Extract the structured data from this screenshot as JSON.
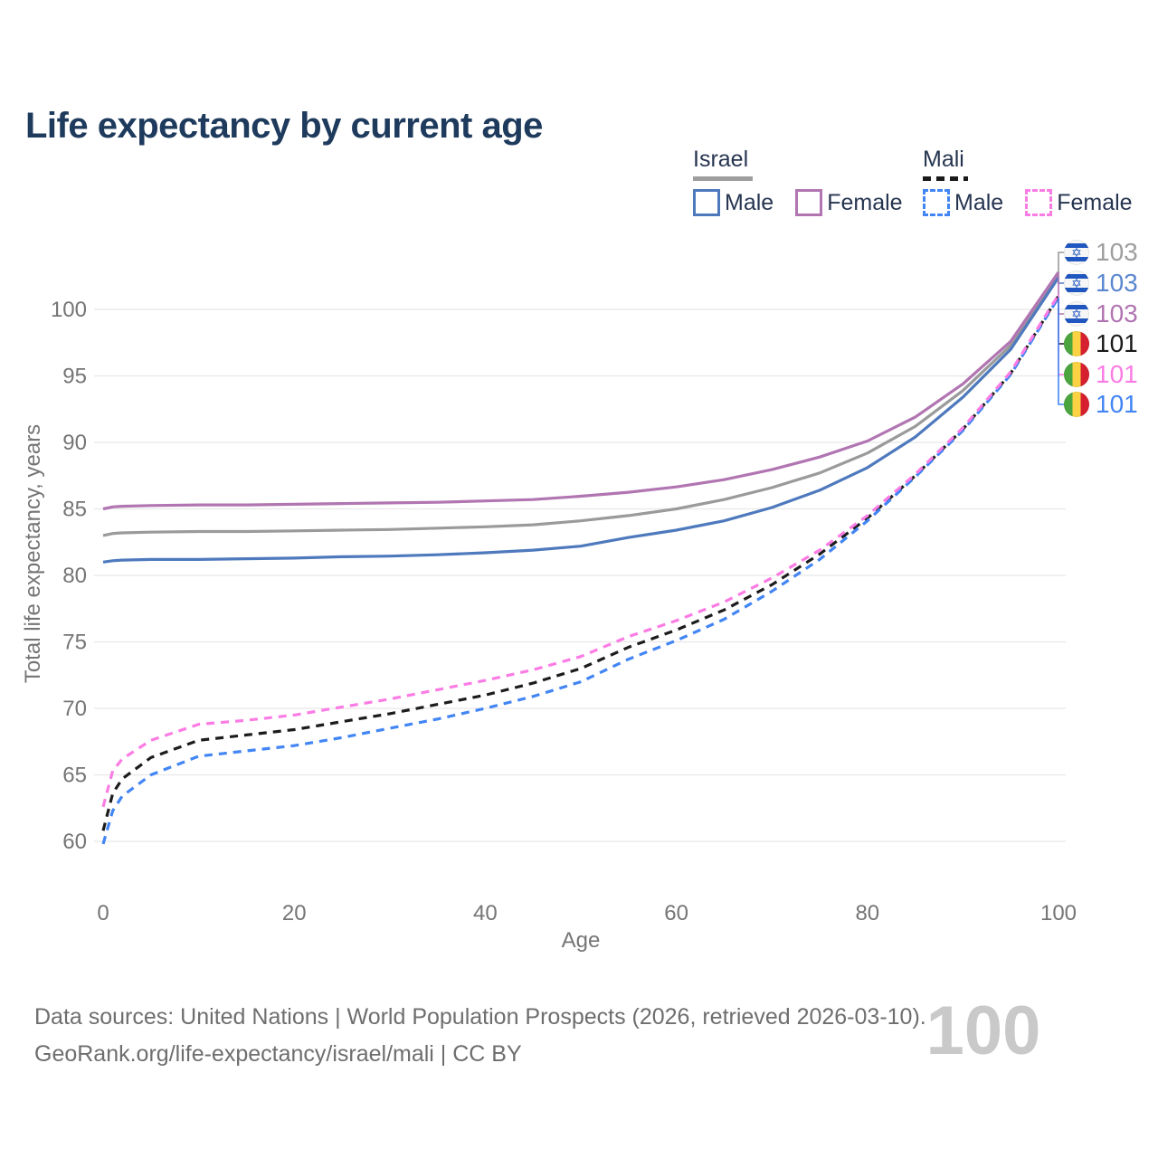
{
  "title": "Life expectancy by current age",
  "legend": {
    "groups": [
      {
        "name": "Israel",
        "line_style": "solid",
        "line_color": "#9e9e9e",
        "items": [
          {
            "label": "Male",
            "color": "#4e79bd",
            "dashed": false
          },
          {
            "label": "Female",
            "color": "#b175b1",
            "dashed": false
          }
        ]
      },
      {
        "name": "Mali",
        "line_style": "dashed",
        "line_color": "#1a1a1a",
        "items": [
          {
            "label": "Male",
            "color": "#4285f4",
            "dashed": true
          },
          {
            "label": "Female",
            "color": "#fb7ce4",
            "dashed": true
          }
        ]
      }
    ]
  },
  "axes": {
    "y_title": "Total life expectancy, years",
    "x_title": "Age",
    "y_ticks": [
      60,
      65,
      70,
      75,
      80,
      85,
      90,
      95,
      100
    ],
    "x_ticks": [
      0,
      20,
      40,
      60,
      80,
      100
    ]
  },
  "watermark": "100",
  "end_labels": [
    {
      "flag": "israel",
      "value": "103",
      "color": "#9e9e9e"
    },
    {
      "flag": "israel",
      "value": "103",
      "color": "#5b87cf"
    },
    {
      "flag": "israel",
      "value": "103",
      "color": "#b175b1"
    },
    {
      "flag": "mali",
      "value": "101",
      "color": "#1a1a1a"
    },
    {
      "flag": "mali",
      "value": "101",
      "color": "#fb7ce4"
    },
    {
      "flag": "mali",
      "value": "101",
      "color": "#4285f4"
    }
  ],
  "footer": {
    "line1": "Data sources: United Nations | World Population Prospects (2026, retrieved 2026-03-10).",
    "line2": "GeoRank.org/life-expectancy/israel/mali | CC BY"
  },
  "chart_data": {
    "type": "line",
    "title": "Life expectancy by current age",
    "xlabel": "Age",
    "ylabel": "Total life expectancy, years",
    "xlim": [
      0,
      100
    ],
    "ylim": [
      59,
      104
    ],
    "grid": "horizontal",
    "legend_position": "top-right",
    "x": [
      0,
      1,
      2,
      5,
      10,
      15,
      20,
      25,
      30,
      35,
      40,
      45,
      50,
      55,
      60,
      65,
      70,
      75,
      80,
      85,
      90,
      95,
      100
    ],
    "series": [
      {
        "name": "Israel",
        "sex": "both",
        "color": "#9a9a9a",
        "dashed": false,
        "end_value_label": "103",
        "values": [
          83.0,
          83.15,
          83.2,
          83.25,
          83.3,
          83.3,
          83.35,
          83.4,
          83.45,
          83.55,
          83.65,
          83.8,
          84.1,
          84.5,
          85.0,
          85.7,
          86.6,
          87.7,
          89.2,
          91.2,
          93.9,
          97.3,
          102.6
        ]
      },
      {
        "name": "Israel Male",
        "sex": "male",
        "color": "#4e79bd",
        "dashed": false,
        "end_value_label": "103",
        "values": [
          81.0,
          81.1,
          81.15,
          81.2,
          81.2,
          81.25,
          81.3,
          81.4,
          81.45,
          81.55,
          81.7,
          81.9,
          82.2,
          82.85,
          83.4,
          84.1,
          85.1,
          86.4,
          88.1,
          90.4,
          93.4,
          97.0,
          102.4
        ]
      },
      {
        "name": "Israel Female",
        "sex": "female",
        "color": "#b175b1",
        "dashed": false,
        "end_value_label": "103",
        "values": [
          85.0,
          85.15,
          85.2,
          85.25,
          85.3,
          85.3,
          85.35,
          85.4,
          85.45,
          85.5,
          85.6,
          85.7,
          85.95,
          86.25,
          86.65,
          87.2,
          87.95,
          88.9,
          90.1,
          91.9,
          94.4,
          97.6,
          102.8
        ]
      },
      {
        "name": "Mali",
        "sex": "both",
        "color": "#1c1c1c",
        "dashed": true,
        "end_value_label": "101",
        "values": [
          60.8,
          63.6,
          64.7,
          66.3,
          67.6,
          68.0,
          68.4,
          69.0,
          69.6,
          70.3,
          71.0,
          71.9,
          73.0,
          74.6,
          75.9,
          77.4,
          79.3,
          81.6,
          84.3,
          87.5,
          91.0,
          95.2,
          101.0
        ]
      },
      {
        "name": "Mali Female",
        "sex": "female",
        "color": "#fb7ce4",
        "dashed": true,
        "end_value_label": "101",
        "values": [
          62.6,
          65.3,
          66.2,
          67.6,
          68.8,
          69.1,
          69.5,
          70.1,
          70.7,
          71.4,
          72.1,
          72.9,
          73.9,
          75.4,
          76.6,
          78.0,
          79.8,
          81.9,
          84.5,
          87.6,
          91.1,
          95.3,
          101.1
        ]
      },
      {
        "name": "Mali Male",
        "sex": "male",
        "color": "#4285f4",
        "dashed": true,
        "end_value_label": "101",
        "values": [
          59.8,
          62.3,
          63.4,
          65.0,
          66.4,
          66.8,
          67.2,
          67.8,
          68.5,
          69.2,
          70.0,
          70.9,
          72.0,
          73.7,
          75.1,
          76.7,
          78.8,
          81.2,
          84.1,
          87.4,
          90.9,
          95.1,
          100.9
        ]
      }
    ]
  }
}
